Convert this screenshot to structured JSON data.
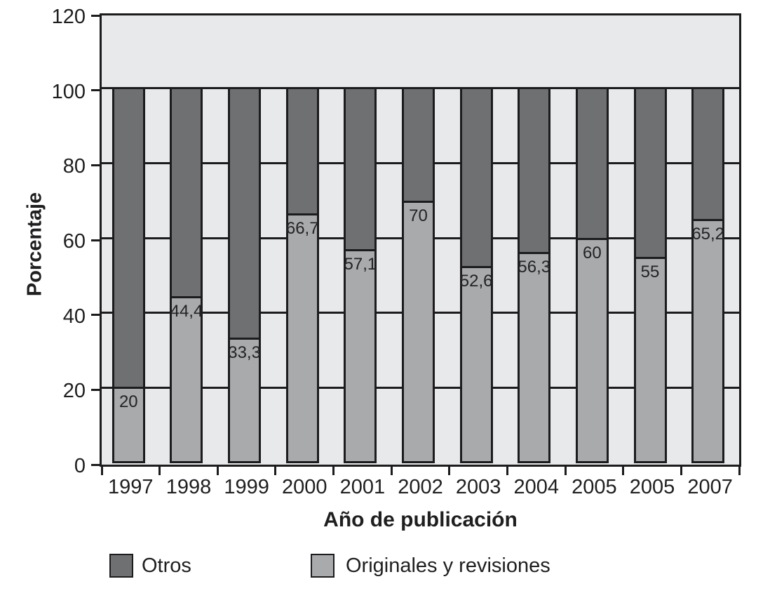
{
  "chart_data": {
    "type": "bar",
    "stacked": true,
    "title": "",
    "xlabel": "Año de publicación",
    "ylabel": "Porcentaje",
    "categories": [
      "1997",
      "1998",
      "1999",
      "2000",
      "2001",
      "2002",
      "2003",
      "2004",
      "2005",
      "2005",
      "2007"
    ],
    "series": [
      {
        "name": "Originales y revisiones",
        "color": "#a9aaac",
        "values": [
          20,
          44.4,
          33.3,
          66.7,
          57.1,
          70,
          52.6,
          56.3,
          60,
          55,
          65.2
        ],
        "value_labels": [
          "20",
          "44,4",
          "33,3",
          "66,7",
          "57,1",
          "70",
          "52,6",
          "56,3",
          "60",
          "55",
          "65,2"
        ]
      },
      {
        "name": "Otros",
        "color": "#6f7072",
        "values": [
          80,
          55.6,
          66.7,
          33.3,
          42.9,
          30,
          47.4,
          43.7,
          40,
          45,
          34.8
        ],
        "value_labels": []
      }
    ],
    "ylim": [
      0,
      120
    ],
    "yticks": [
      "0",
      "20",
      "40",
      "60",
      "80",
      "100",
      "120"
    ],
    "grid": "horizontal-black",
    "plot_background": "#e8e9eb",
    "line_color": "#1c1c1e",
    "legend_position": "bottom"
  },
  "legend": {
    "items": [
      {
        "label": "Otros",
        "color": "#6f7072"
      },
      {
        "label": "Originales y revisiones",
        "color": "#a9aaac"
      }
    ]
  }
}
